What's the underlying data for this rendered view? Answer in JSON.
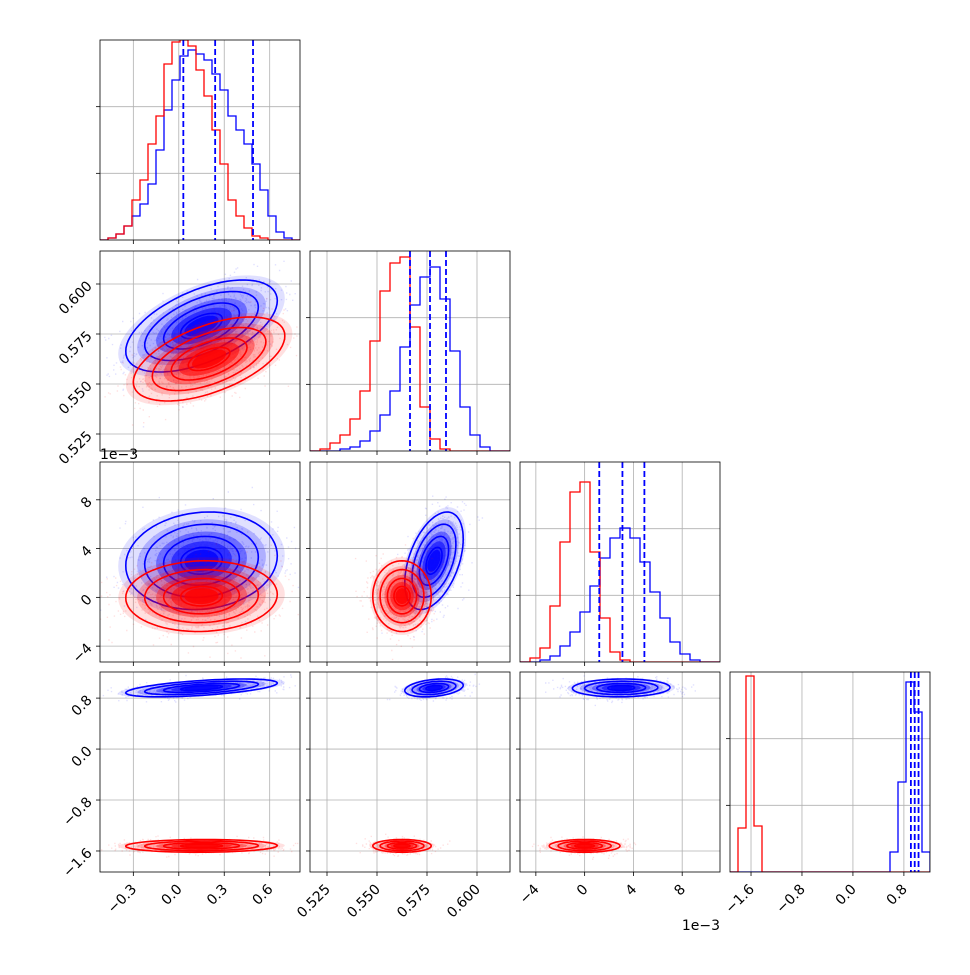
{
  "chart_data": {
    "type": "corner",
    "grid": true,
    "variables": [
      {
        "range": [
          -0.52,
          0.8
        ],
        "ticks": [
          -0.3,
          0.0,
          0.3,
          0.6
        ],
        "tick_labels": [
          "−0.3",
          "0.0",
          "0.3",
          "0.6"
        ],
        "offset_label": "",
        "quantiles": [
          0.03,
          0.24,
          0.49
        ]
      },
      {
        "range": [
          0.5165,
          0.6165
        ],
        "ticks": [
          0.525,
          0.55,
          0.575,
          0.6
        ],
        "tick_labels": [
          "0.525",
          "0.550",
          "0.575",
          "0.600"
        ],
        "offset_label": "",
        "quantiles": [
          0.5665,
          0.5765,
          0.5845
        ]
      },
      {
        "range": [
          -5.3,
          11.1
        ],
        "ticks": [
          -4,
          0,
          4,
          8
        ],
        "tick_labels": [
          "−4",
          "0",
          "4",
          "8"
        ],
        "offset_label": "1e−3",
        "quantiles": [
          1.2,
          3.1,
          4.9
        ]
      },
      {
        "range": [
          -1.93,
          1.21
        ],
        "ticks": [
          -1.6,
          -0.8,
          0.0,
          0.8
        ],
        "tick_labels": [
          "−1.6",
          "−0.8",
          "0.0",
          "0.8"
        ],
        "offset_label": "",
        "quantiles": [
          0.91,
          0.97,
          1.03
        ]
      }
    ],
    "series": [
      {
        "color": "#0000ff",
        "histograms": [
          {
            "edges": [
              -0.52,
              0.8
            ],
            "counts": [
              0.0,
              0.01,
              0.03,
              0.07,
              0.12,
              0.18,
              0.28,
              0.45,
              0.65,
              0.8,
              0.92,
              0.95,
              0.93,
              0.9,
              0.83,
              0.75,
              0.62,
              0.55,
              0.48,
              0.38,
              0.25,
              0.12,
              0.04,
              0.01,
              0.0
            ]
          },
          {
            "edges": [
              0.5165,
              0.6165
            ],
            "counts": [
              0.0,
              0.0,
              0.0,
              0.01,
              0.02,
              0.05,
              0.1,
              0.18,
              0.3,
              0.52,
              0.73,
              0.87,
              0.92,
              0.76,
              0.5,
              0.22,
              0.08,
              0.02,
              0.0,
              0.0
            ]
          },
          {
            "edges": [
              -5.3,
              11.1
            ],
            "counts": [
              0.0,
              0.0,
              0.01,
              0.03,
              0.08,
              0.15,
              0.25,
              0.38,
              0.52,
              0.62,
              0.67,
              0.62,
              0.5,
              0.35,
              0.22,
              0.1,
              0.04,
              0.01,
              0.0,
              0.0
            ]
          },
          {
            "edges": [
              -1.93,
              1.21
            ],
            "counts": [
              0.0,
              0.0,
              0.0,
              0.0,
              0.0,
              0.0,
              0.0,
              0.0,
              0.0,
              0.0,
              0.0,
              0.0,
              0.0,
              0.0,
              0.0,
              0.0,
              0.0,
              0.0,
              0.0,
              0.0,
              0.1,
              0.45,
              0.95,
              0.8,
              0.1
            ]
          }
        ],
        "pairs": [
          {
            "x": 0,
            "y": 1,
            "center": [
              0.15,
              0.579
            ],
            "sigma": [
              0.25,
              0.0115
            ],
            "rho": 0.55
          },
          {
            "x": 0,
            "y": 2,
            "center": [
              0.15,
              3.0
            ],
            "sigma": [
              0.25,
              2.0
            ],
            "rho": 0.1
          },
          {
            "x": 1,
            "y": 2,
            "center": [
              0.5785,
              3.0
            ],
            "sigma": [
              0.0073,
              2.0
            ],
            "rho": 0.45
          },
          {
            "x": 0,
            "y": 3,
            "center": [
              0.15,
              0.96
            ],
            "sigma": [
              0.25,
              0.07
            ],
            "rho": 0.55
          },
          {
            "x": 1,
            "y": 3,
            "center": [
              0.5785,
              0.96
            ],
            "sigma": [
              0.0073,
              0.07
            ],
            "rho": 0.3
          },
          {
            "x": 2,
            "y": 3,
            "center": [
              3.0,
              0.96
            ],
            "sigma": [
              2.0,
              0.07
            ],
            "rho": 0.05
          }
        ]
      },
      {
        "color": "#ff0000",
        "histograms": [
          {
            "edges": [
              -0.52,
              0.8
            ],
            "counts": [
              0.0,
              0.01,
              0.03,
              0.07,
              0.2,
              0.3,
              0.48,
              0.62,
              0.88,
              0.99,
              1.0,
              0.97,
              0.85,
              0.72,
              0.55,
              0.38,
              0.2,
              0.12,
              0.06,
              0.02,
              0.01,
              0.0,
              0.0,
              0.0,
              0.0
            ]
          },
          {
            "edges": [
              0.5165,
              0.6165
            ],
            "counts": [
              0.0,
              0.01,
              0.04,
              0.08,
              0.16,
              0.3,
              0.55,
              0.8,
              0.94,
              0.97,
              0.62,
              0.22,
              0.06,
              0.01,
              0.0,
              0.0,
              0.0,
              0.0,
              0.0,
              0.0
            ]
          },
          {
            "edges": [
              -5.3,
              11.1
            ],
            "counts": [
              0.0,
              0.02,
              0.07,
              0.28,
              0.6,
              0.85,
              0.9,
              0.55,
              0.22,
              0.05,
              0.01,
              0.0,
              0.0,
              0.0,
              0.0,
              0.0,
              0.0,
              0.0,
              0.0,
              0.0
            ]
          },
          {
            "edges": [
              -1.93,
              1.21
            ],
            "counts": [
              0.0,
              0.22,
              0.98,
              0.23,
              0.0,
              0.0,
              0.0,
              0.0,
              0.0,
              0.0,
              0.0,
              0.0,
              0.0,
              0.0,
              0.0,
              0.0,
              0.0,
              0.0,
              0.0,
              0.0,
              0.0,
              0.0,
              0.0,
              0.0,
              0.0
            ]
          }
        ],
        "pairs": [
          {
            "x": 0,
            "y": 1,
            "center": [
              0.2,
              0.5625
            ],
            "sigma": [
              0.25,
              0.0105
            ],
            "rho": 0.55
          },
          {
            "x": 0,
            "y": 2,
            "center": [
              0.15,
              0.1
            ],
            "sigma": [
              0.25,
              1.45
            ],
            "rho": 0.05
          },
          {
            "x": 1,
            "y": 2,
            "center": [
              0.5625,
              0.1
            ],
            "sigma": [
              0.0073,
              1.45
            ],
            "rho": 0.0
          },
          {
            "x": 0,
            "y": 3,
            "center": [
              0.15,
              -1.52
            ],
            "sigma": [
              0.25,
              0.05
            ],
            "rho": 0.05
          },
          {
            "x": 1,
            "y": 3,
            "center": [
              0.5625,
              -1.52
            ],
            "sigma": [
              0.0073,
              0.05
            ],
            "rho": 0.0
          },
          {
            "x": 2,
            "y": 3,
            "center": [
              0.0,
              -1.52
            ],
            "sigma": [
              1.45,
              0.05
            ],
            "rho": 0.0
          }
        ]
      }
    ]
  }
}
